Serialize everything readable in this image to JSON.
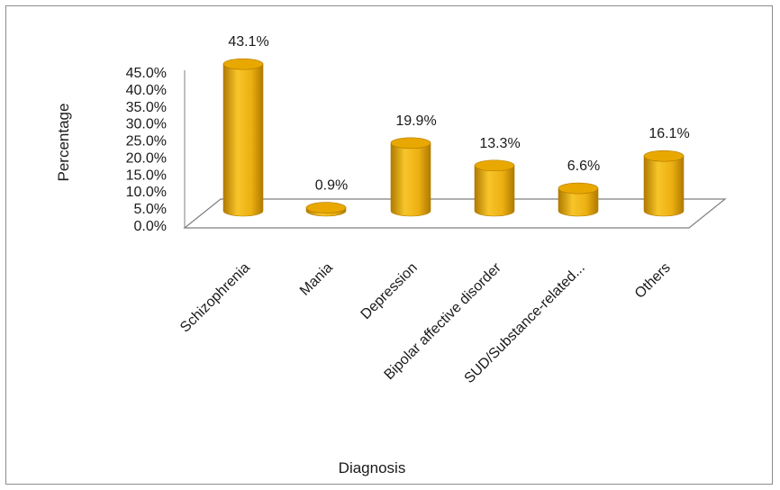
{
  "chart_data": {
    "type": "bar",
    "style": "3d-cylinder",
    "title": "",
    "xlabel": "Diagnosis",
    "ylabel": "Percentage",
    "categories": [
      "Schizophrenia",
      "Mania",
      "Depression",
      "Bipolar affective disorder",
      "SUD/Substance-related...",
      "Others"
    ],
    "values": [
      43.1,
      0.9,
      19.9,
      13.3,
      6.6,
      16.1
    ],
    "data_labels": [
      "43.1%",
      "0.9%",
      "19.9%",
      "13.3%",
      "6.6%",
      "16.1%"
    ],
    "ylim": [
      0,
      45
    ],
    "yticks": [
      "0.0%",
      "5.0%",
      "10.0%",
      "15.0%",
      "20.0%",
      "25.0%",
      "30.0%",
      "35.0%",
      "40.0%",
      "45.0%"
    ],
    "grid": false,
    "legend": "none",
    "colors": {
      "bar_fill": "#F0B418",
      "bar_dark": "#B07A00",
      "bar_top": "#E9A800",
      "floor_stroke": "#7f7f7f"
    }
  }
}
